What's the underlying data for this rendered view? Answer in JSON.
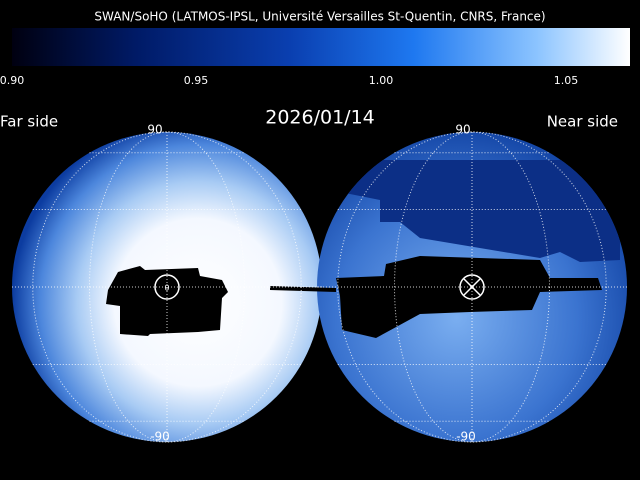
{
  "header": {
    "title": "SWAN/SoHO (LATMOS-IPSL, Université Versailles St-Quentin, CNRS, France)"
  },
  "colorbar": {
    "ticks": [
      "0.90",
      "0.95",
      "1.00",
      "1.05"
    ]
  },
  "labels": {
    "far_side": "Far side",
    "date": "2026/01/14",
    "near_side": "Near side"
  },
  "hemispheres": [
    {
      "top": "90",
      "bottom": "-90"
    },
    {
      "top": "90",
      "bottom": "-90"
    }
  ]
}
